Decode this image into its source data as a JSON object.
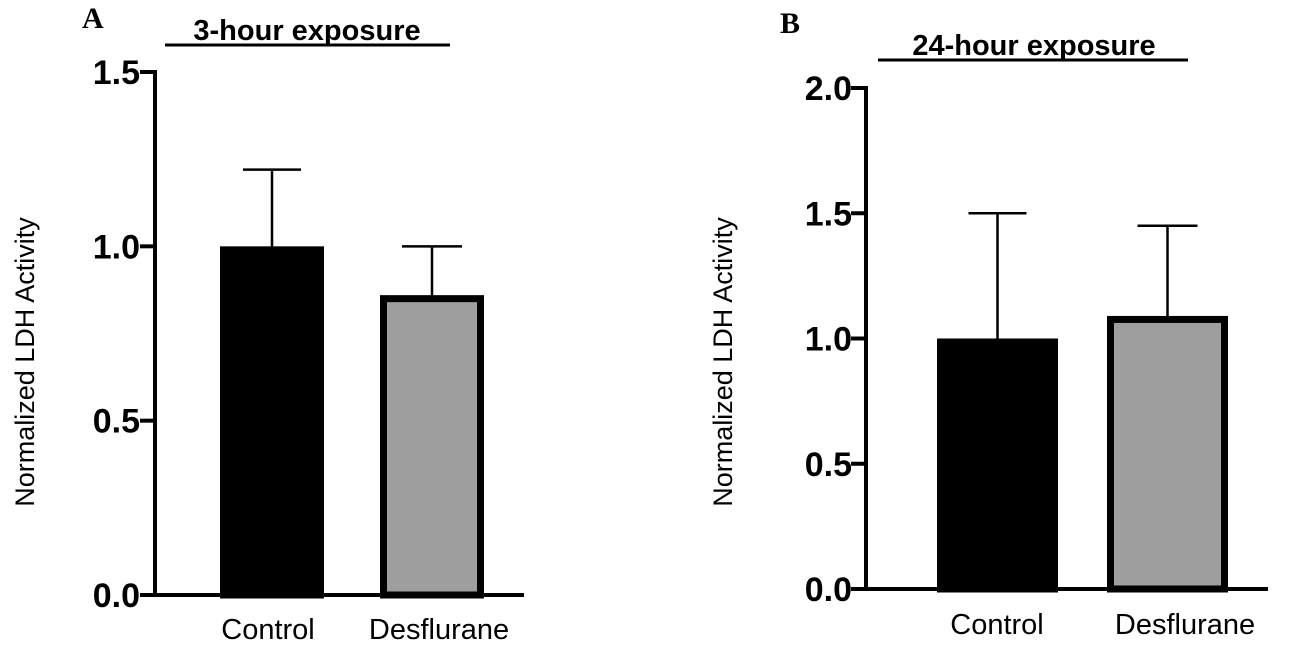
{
  "chart_data": [
    {
      "panel_label": "A",
      "type": "bar",
      "title": "3-hour exposure",
      "xlabel": "",
      "ylabel": "Normalized LDH Activity",
      "categories": [
        "Control",
        "Desflurane"
      ],
      "values": [
        1.0,
        0.86
      ],
      "error_upper": [
        0.22,
        0.14
      ],
      "colors": [
        "#000000",
        "#9e9e9e"
      ],
      "ylim": [
        0,
        1.5
      ],
      "yticks": [
        "0.0",
        "0.5",
        "1.0",
        "1.5"
      ],
      "grid": false
    },
    {
      "panel_label": "B",
      "type": "bar",
      "title": "24-hour exposure",
      "xlabel": "",
      "ylabel": "Normalized LDH Activity",
      "categories": [
        "Control",
        "Desflurane"
      ],
      "values": [
        1.0,
        1.09
      ],
      "error_upper": [
        0.5,
        0.36
      ],
      "colors": [
        "#000000",
        "#9e9e9e"
      ],
      "ylim": [
        0,
        2.0
      ],
      "yticks": [
        "0.0",
        "0.5",
        "1.0",
        "1.5",
        "2.0"
      ],
      "grid": false
    }
  ]
}
